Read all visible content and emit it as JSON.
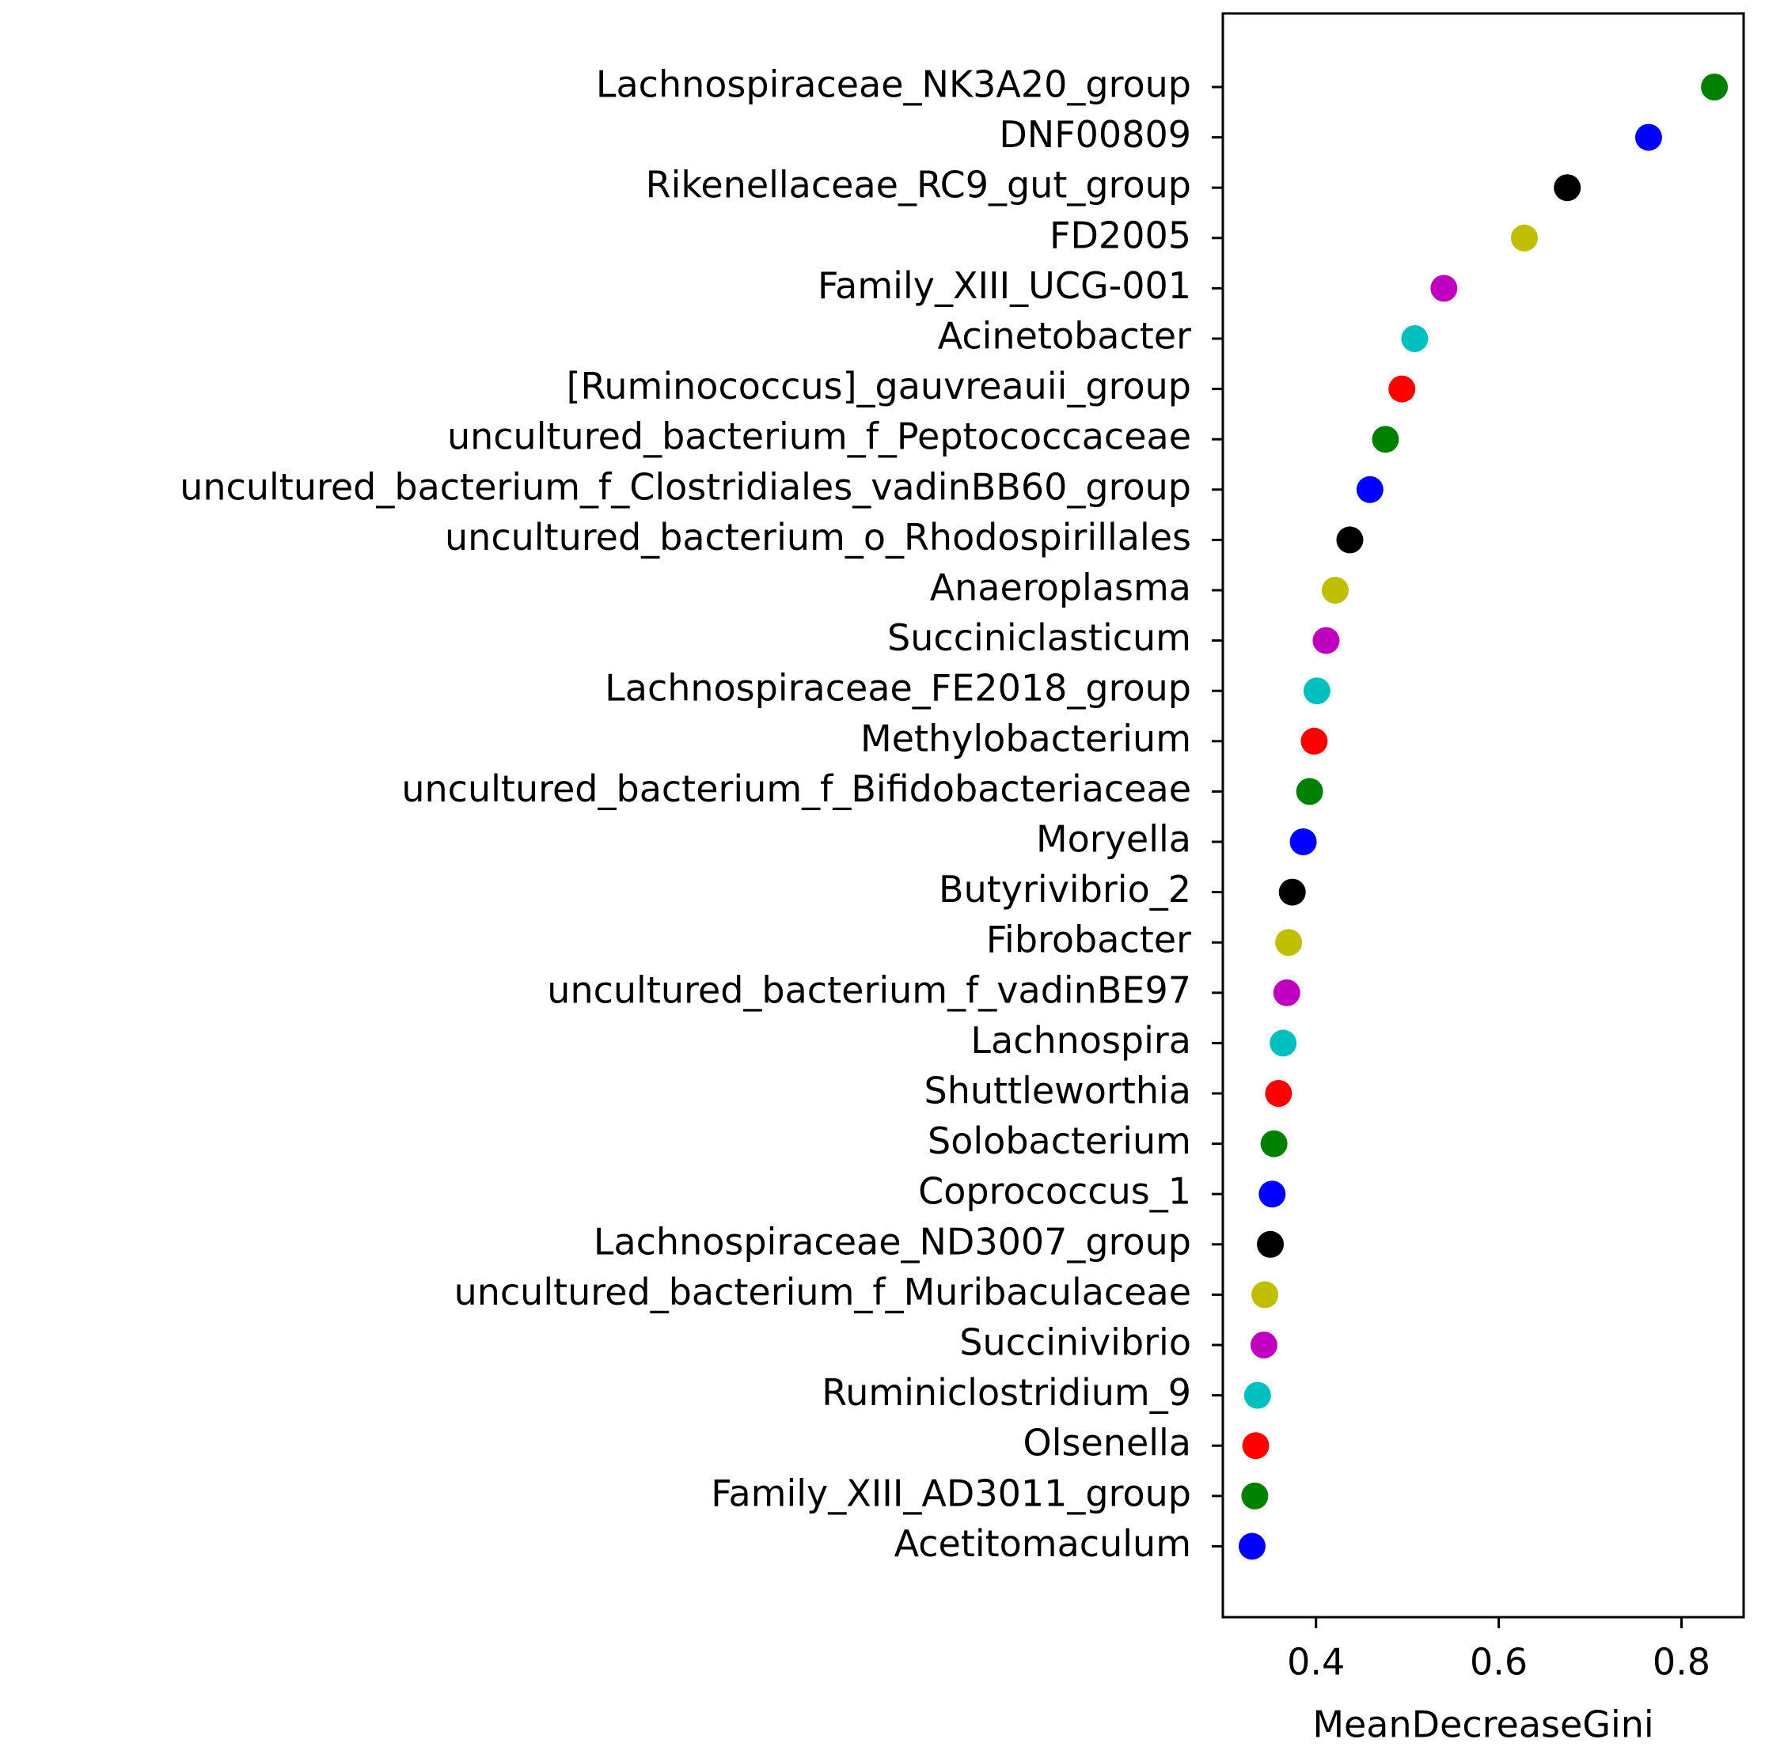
{
  "chart_data": {
    "type": "dot",
    "x_label": "MeanDecreaseGini",
    "categories": [
      "Lachnospiraceae_NK3A20_group",
      "DNF00809",
      "Rikenellaceae_RC9_gut_group",
      "FD2005",
      "Family_XIII_UCG-001",
      "Acinetobacter",
      "[Ruminococcus]_gauvreauii_group",
      "uncultured_bacterium_f_Peptococcaceae",
      "uncultured_bacterium_f_Clostridiales_vadinBB60_group",
      "uncultured_bacterium_o_Rhodospirillales",
      "Anaeroplasma",
      "Succiniclasticum",
      "Lachnospiraceae_FE2018_group",
      "Methylobacterium",
      "uncultured_bacterium_f_Bifidobacteriaceae",
      "Moryella",
      "Butyrivibrio_2",
      "Fibrobacter",
      "uncultured_bacterium_f_vadinBE97",
      "Lachnospira",
      "Shuttleworthia",
      "Solobacterium",
      "Coprococcus_1",
      "Lachnospiraceae_ND3007_group",
      "uncultured_bacterium_f_Muribaculaceae",
      "Succinivibrio",
      "Ruminiclostridium_9",
      "Olsenella",
      "Family_XIII_AD3011_group",
      "Acetitomaculum"
    ],
    "values": [
      0.836,
      0.764,
      0.675,
      0.628,
      0.54,
      0.508,
      0.494,
      0.476,
      0.459,
      0.437,
      0.421,
      0.411,
      0.401,
      0.398,
      0.393,
      0.386,
      0.374,
      0.37,
      0.368,
      0.364,
      0.359,
      0.354,
      0.352,
      0.35,
      0.344,
      0.343,
      0.336,
      0.334,
      0.333,
      0.33
    ],
    "colors": [
      "#008000",
      "#0000ff",
      "#000000",
      "#bfbf00",
      "#bf00bf",
      "#00bfbf",
      "#ff0000",
      "#008000",
      "#0000ff",
      "#000000",
      "#bfbf00",
      "#bf00bf",
      "#00bfbf",
      "#ff0000",
      "#008000",
      "#0000ff",
      "#000000",
      "#bfbf00",
      "#bf00bf",
      "#00bfbf",
      "#ff0000",
      "#008000",
      "#0000ff",
      "#000000",
      "#bfbf00",
      "#bf00bf",
      "#00bfbf",
      "#ff0000",
      "#008000",
      "#0000ff"
    ],
    "xlim": [
      0.298,
      0.868
    ],
    "xticks": [
      0.4,
      0.6,
      0.8
    ]
  }
}
